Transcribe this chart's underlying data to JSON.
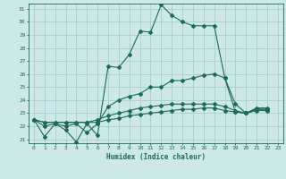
{
  "title": "",
  "xlabel": "Humidex (Indice chaleur)",
  "background_color": "#cce8e8",
  "grid_color": "#aacccc",
  "line_color": "#1a6b5a",
  "xlim": [
    -0.5,
    23.5
  ],
  "ylim": [
    20.7,
    31.4
  ],
  "yticks": [
    21,
    22,
    23,
    24,
    25,
    26,
    27,
    28,
    29,
    30,
    31
  ],
  "xticks": [
    0,
    1,
    2,
    3,
    4,
    5,
    6,
    7,
    8,
    9,
    10,
    11,
    12,
    13,
    14,
    15,
    16,
    17,
    18,
    19,
    20,
    21,
    22,
    23
  ],
  "series": [
    [
      22.5,
      21.2,
      22.2,
      21.7,
      20.8,
      22.2,
      21.3,
      26.6,
      26.5,
      27.5,
      29.3,
      29.2,
      31.3,
      30.5,
      30.0,
      29.7,
      29.7,
      29.7,
      25.7,
      23.1,
      23.0,
      23.4,
      23.4
    ],
    [
      22.5,
      22.0,
      22.2,
      22.0,
      22.2,
      21.5,
      22.2,
      23.5,
      24.0,
      24.3,
      24.5,
      25.0,
      25.0,
      25.5,
      25.5,
      25.7,
      25.9,
      26.0,
      25.7,
      23.7,
      23.0,
      23.3,
      23.3
    ],
    [
      22.5,
      22.3,
      22.3,
      22.3,
      22.3,
      22.3,
      22.5,
      22.8,
      23.0,
      23.2,
      23.4,
      23.5,
      23.6,
      23.7,
      23.7,
      23.7,
      23.7,
      23.7,
      23.5,
      23.2,
      23.0,
      23.3,
      23.3
    ],
    [
      22.5,
      22.3,
      22.3,
      22.3,
      22.3,
      22.3,
      22.3,
      22.5,
      22.6,
      22.8,
      22.9,
      23.0,
      23.1,
      23.2,
      23.3,
      23.3,
      23.4,
      23.4,
      23.2,
      23.1,
      23.0,
      23.2,
      23.2
    ]
  ]
}
